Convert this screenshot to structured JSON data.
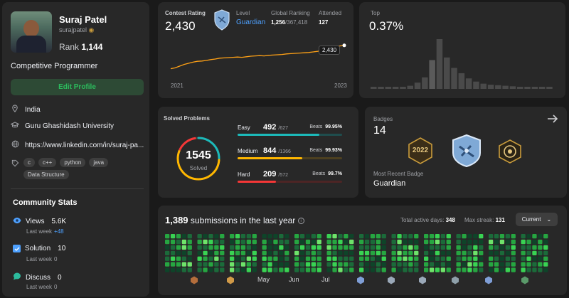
{
  "profile": {
    "name": "Suraj Patel",
    "username": "surajpatel",
    "rank_label": "Rank",
    "rank_value": "1,144",
    "bio": "Competitive Programmer",
    "edit_button": "Edit Profile",
    "location": "India",
    "school": "Guru Ghashidash University",
    "website": "https://www.linkedin.com/in/suraj-pa...",
    "tags": [
      "c",
      "c++",
      "python",
      "java",
      "Data Structure"
    ]
  },
  "community": {
    "title": "Community Stats",
    "views": {
      "label": "Views",
      "value": "5.6K",
      "sub": "Last week",
      "delta": "+48"
    },
    "solution": {
      "label": "Solution",
      "value": "10",
      "sub": "Last week",
      "delta": "0"
    },
    "discuss": {
      "label": "Discuss",
      "value": "0",
      "sub": "Last week",
      "delta": "0"
    }
  },
  "contest": {
    "rating_label": "Contest Rating",
    "rating": "2,430",
    "level_label": "Level",
    "level": "Guardian",
    "global_label": "Global Ranking",
    "global_rank": "1,256",
    "global_total": "/367,418",
    "attended_label": "Attended",
    "attended": "127",
    "year_start": "2021",
    "year_end": "2023",
    "tooltip": "2,430",
    "top_label": "Top",
    "top_value": "0.37%"
  },
  "chart_data": {
    "type": "line",
    "title": "Contest Rating",
    "x_range": [
      "2021",
      "2023"
    ],
    "values": [
      1610,
      1640,
      1700,
      1760,
      1800,
      1840,
      1870,
      1880,
      1900,
      1930,
      1950,
      1980,
      1990,
      2000,
      2010,
      2020,
      2010,
      2030,
      2050,
      2060,
      2070,
      2060,
      2080,
      2090,
      2100,
      2110,
      2130,
      2140,
      2150,
      2160,
      2170,
      2180,
      2200,
      2220,
      2260,
      2300,
      2330,
      2380,
      2410,
      2430
    ],
    "histogram": {
      "type": "bar",
      "label": "Top",
      "values": [
        4,
        4,
        4,
        4,
        4,
        6,
        12,
        22,
        55,
        95,
        60,
        40,
        30,
        20,
        14,
        10,
        8,
        7,
        6,
        5,
        4,
        4,
        3,
        3,
        3
      ],
      "highlight_index": 8
    }
  },
  "solved": {
    "title": "Solved Problems",
    "total": "1545",
    "total_label": "Solved",
    "beats_label": "Beats",
    "rows": [
      {
        "name": "Easy",
        "count": "492",
        "total": "/627",
        "beats": "99.95%",
        "color": "#1cbaba",
        "fraction": 0.785
      },
      {
        "name": "Medium",
        "count": "844",
        "total": "/1366",
        "beats": "99.93%",
        "color": "#ffb700",
        "fraction": 0.618
      },
      {
        "name": "Hard",
        "count": "209",
        "total": "/572",
        "beats": "99.7%",
        "color": "#f63737",
        "fraction": 0.365
      }
    ]
  },
  "badges": {
    "title": "Badges",
    "count": "14",
    "recent_label": "Most Recent Badge",
    "recent": "Guardian",
    "badge_text_1": "2022"
  },
  "submissions": {
    "count": "1,389",
    "label": "submissions in the last year",
    "active_label": "Total active days:",
    "active_days": "348",
    "streak_label": "Max streak:",
    "max_streak": "131",
    "select_value": "Current",
    "months": [
      "May",
      "Jun",
      "Jul"
    ],
    "colors": [
      "#0e4429",
      "#1b6b3a",
      "#26a641",
      "#39d353",
      "#6ee36a"
    ]
  }
}
